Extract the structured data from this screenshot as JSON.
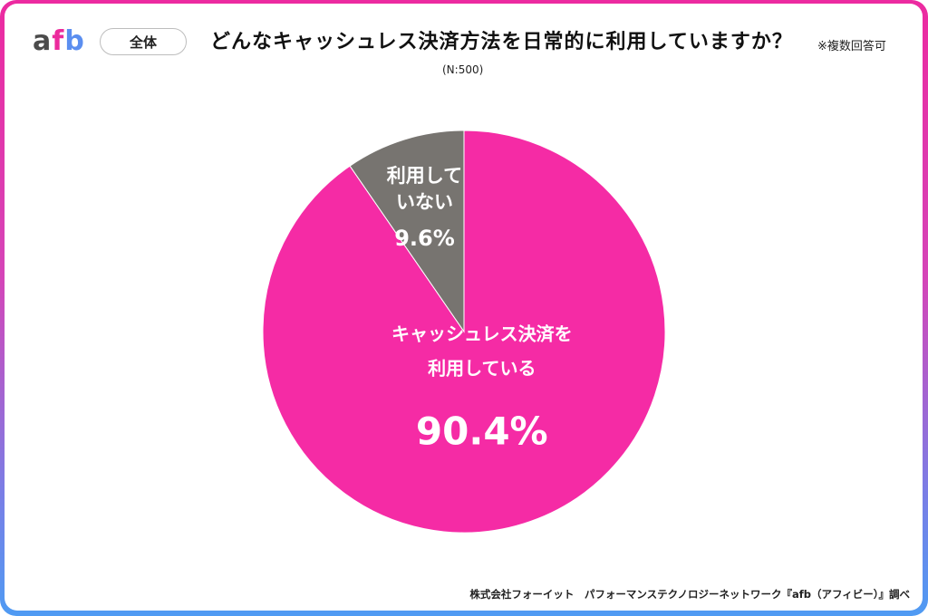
{
  "header": {
    "logo": {
      "a": "a",
      "f": "f",
      "b": "b"
    },
    "filter_pill": "全体",
    "note": "※複数回答可",
    "sample_size": "(N:500)"
  },
  "footer": {
    "credit": "株式会社フォーイット　パフォーマンステクノロジーネットワーク『afb（アフィビー）』調べ"
  },
  "colors": {
    "used": "#f52ba5",
    "not_used": "#777470"
  },
  "chart_data": {
    "type": "pie",
    "title": "どんなキャッシュレス決済方法を日常的に利用していますか？",
    "start": "12 o'clock",
    "direction": "clockwise",
    "slices": [
      {
        "label_lines": [
          "キャッシュレス決済を",
          "利用している"
        ],
        "value": 90.4,
        "display": "90.4%",
        "color": "#f52ba5"
      },
      {
        "label_lines": [
          "利用して",
          "いない"
        ],
        "value": 9.6,
        "display": "9.6%",
        "color": "#777470"
      }
    ]
  }
}
